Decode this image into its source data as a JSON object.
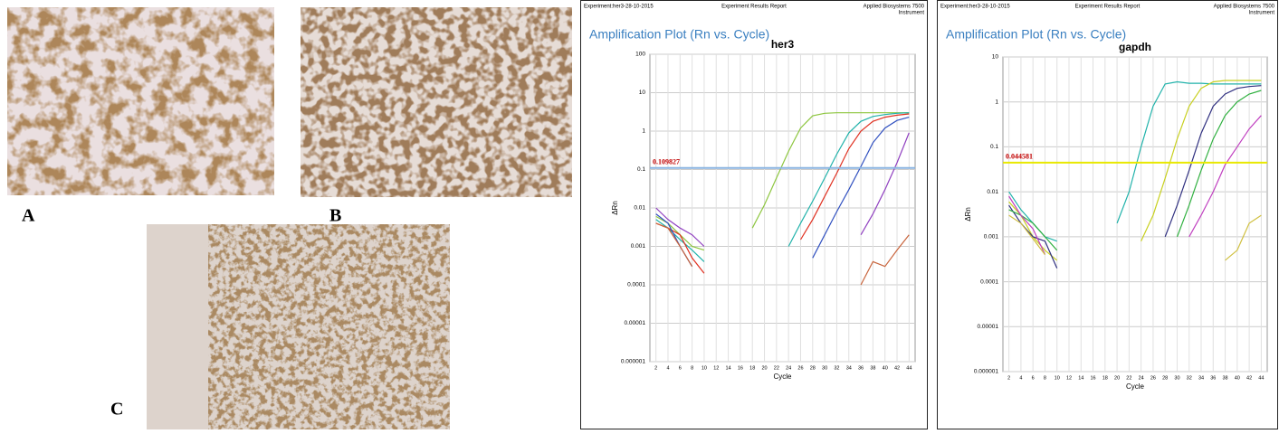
{
  "panel_labels": [
    "A",
    "B",
    "C"
  ],
  "chart_data": [
    {
      "type": "line",
      "header_left": "Experiment:her3-28-10-2015",
      "header_center": "Experiment Results Report",
      "header_right": "Applied Biosystems 7500",
      "header_right_line2": "Instrument",
      "title": "Amplification Plot (Rn vs. Cycle)",
      "subtitle": "her3",
      "x_label": "Cycle",
      "y_label": "ΔRn",
      "log_y": true,
      "grid": true,
      "threshold": 0.109827,
      "threshold_color": "#8ab4e0",
      "threshold_label_color": "#c00000",
      "xlim": [
        1,
        45
      ],
      "xticks": [
        2,
        4,
        6,
        8,
        10,
        12,
        14,
        16,
        18,
        20,
        22,
        24,
        26,
        28,
        30,
        32,
        34,
        36,
        38,
        40,
        42,
        44
      ],
      "ylim": [
        1e-06,
        100
      ],
      "yticks": [
        100,
        10,
        1,
        0.1,
        0.01,
        0.001,
        0.0001,
        1e-05,
        1e-06
      ],
      "x": [
        2,
        4,
        6,
        8,
        10,
        12,
        14,
        16,
        18,
        20,
        22,
        24,
        26,
        28,
        30,
        32,
        34,
        36,
        38,
        40,
        42,
        44
      ],
      "series": [
        {
          "color": "#8dc63f",
          "values": [
            0.006,
            0.004,
            0.002,
            0.001,
            0.0008,
            null,
            null,
            null,
            0.003,
            0.012,
            0.06,
            0.3,
            1.2,
            2.5,
            2.9,
            3,
            3,
            3,
            3,
            3,
            3,
            3
          ]
        },
        {
          "color": "#20b2aa",
          "values": [
            0.005,
            0.003,
            0.0015,
            0.0008,
            0.0004,
            null,
            null,
            null,
            null,
            null,
            null,
            0.001,
            0.004,
            0.015,
            0.06,
            0.25,
            0.9,
            1.8,
            2.4,
            2.7,
            2.9,
            3
          ]
        },
        {
          "color": "#e03020",
          "values": [
            0.004,
            0.003,
            0.002,
            0.0005,
            0.0002,
            null,
            null,
            null,
            null,
            null,
            null,
            null,
            0.0015,
            0.005,
            0.02,
            0.08,
            0.35,
            1,
            1.8,
            2.3,
            2.6,
            2.8
          ]
        },
        {
          "color": "#3050c0",
          "values": [
            0.007,
            0.004,
            0.001,
            0.0003,
            null,
            null,
            null,
            null,
            null,
            null,
            null,
            null,
            null,
            0.0005,
            0.002,
            0.008,
            0.03,
            0.12,
            0.5,
            1.2,
            1.9,
            2.3
          ]
        },
        {
          "color": "#9040c0",
          "values": [
            0.01,
            0.005,
            0.003,
            0.002,
            0.001,
            null,
            null,
            null,
            null,
            null,
            null,
            null,
            null,
            null,
            null,
            null,
            null,
            0.002,
            0.007,
            0.03,
            0.15,
            0.9
          ]
        },
        {
          "color": "#c8643c",
          "values": [
            0.004,
            0.003,
            0.001,
            0.0003,
            null,
            null,
            null,
            null,
            null,
            null,
            null,
            null,
            null,
            null,
            null,
            null,
            null,
            0.0001,
            0.0004,
            0.0003,
            0.0008,
            0.002
          ]
        }
      ]
    },
    {
      "type": "line",
      "header_left": "Experiment:her3-28-10-2015",
      "header_center": "Experiment Results Report",
      "header_right": "Applied Biosystems 7500",
      "header_right_line2": "Instrument",
      "title": "Amplification Plot (Rn vs. Cycle)",
      "subtitle": "gapdh",
      "x_label": "Cycle",
      "y_label": "ΔRn",
      "log_y": true,
      "grid": true,
      "threshold": 0.044581,
      "threshold_color": "#e8e800",
      "threshold_label_color": "#c00000",
      "xlim": [
        1,
        45
      ],
      "xticks": [
        2,
        4,
        6,
        8,
        10,
        12,
        14,
        16,
        18,
        20,
        22,
        24,
        26,
        28,
        30,
        32,
        34,
        36,
        38,
        40,
        42,
        44
      ],
      "ylim": [
        1e-06,
        10
      ],
      "yticks": [
        10,
        1,
        0.1,
        0.01,
        0.001,
        0.0001,
        1e-05,
        1e-06
      ],
      "x": [
        2,
        4,
        6,
        8,
        10,
        12,
        14,
        16,
        18,
        20,
        22,
        24,
        26,
        28,
        30,
        32,
        34,
        36,
        38,
        40,
        42,
        44
      ],
      "series": [
        {
          "color": "#20b2aa",
          "values": [
            0.01,
            0.004,
            0.002,
            0.001,
            0.0008,
            null,
            null,
            null,
            null,
            0.002,
            0.01,
            0.1,
            0.8,
            2.5,
            2.8,
            2.6,
            2.6,
            2.5,
            2.5,
            2.5,
            2.5,
            2.5
          ]
        },
        {
          "color": "#c8d020",
          "values": [
            0.006,
            0.003,
            0.001,
            0.0005,
            0.0003,
            null,
            null,
            null,
            null,
            null,
            null,
            0.0008,
            0.003,
            0.02,
            0.15,
            0.8,
            2,
            2.8,
            3,
            3,
            3,
            3
          ]
        },
        {
          "color": "#303080",
          "values": [
            0.005,
            0.002,
            0.001,
            0.0008,
            0.0002,
            null,
            null,
            null,
            null,
            null,
            null,
            null,
            null,
            0.001,
            0.005,
            0.03,
            0.2,
            0.8,
            1.5,
            2,
            2.2,
            2.3
          ]
        },
        {
          "color": "#30b040",
          "values": [
            0.004,
            0.003,
            0.002,
            0.001,
            0.0005,
            null,
            null,
            null,
            null,
            null,
            null,
            null,
            null,
            null,
            0.001,
            0.005,
            0.03,
            0.15,
            0.5,
            1,
            1.5,
            1.8
          ]
        },
        {
          "color": "#c040c0",
          "values": [
            0.008,
            0.003,
            0.0015,
            0.0004,
            null,
            null,
            null,
            null,
            null,
            null,
            null,
            null,
            null,
            null,
            null,
            0.001,
            0.003,
            0.01,
            0.04,
            0.1,
            0.25,
            0.5
          ]
        },
        {
          "color": "#d0c040",
          "values": [
            0.003,
            0.002,
            0.0009,
            0.0004,
            null,
            null,
            null,
            null,
            null,
            null,
            null,
            null,
            null,
            null,
            null,
            null,
            null,
            null,
            0.0003,
            0.0005,
            0.002,
            0.003
          ]
        }
      ]
    }
  ]
}
